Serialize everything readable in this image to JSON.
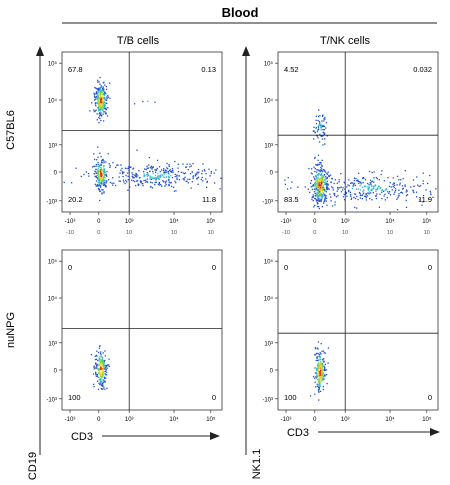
{
  "title": "Blood",
  "columns": [
    {
      "title": "T/B cells",
      "x_label": "CD3",
      "y_label": "CD19"
    },
    {
      "title": "T/NK cells",
      "x_label": "CD3",
      "y_label": "NK1.1"
    }
  ],
  "rows": [
    {
      "label": "C57BL6"
    },
    {
      "label": "nuNPG"
    }
  ],
  "axis_ticks": {
    "x_upper": [
      "-10³",
      "0",
      "10³",
      "10⁴",
      "10⁵"
    ],
    "x_lower": [
      "-10",
      "0",
      "10",
      "10",
      "10"
    ],
    "y": [
      "10⁵",
      "10⁴",
      "10³",
      "0",
      "-10³"
    ]
  },
  "chart_data": [
    {
      "type": "scatter",
      "title": "T/B cells",
      "row": "C57BL6",
      "xlabel": "CD3",
      "ylabel": "CD19",
      "quadrants": {
        "top_left": "67.8",
        "top_right": "0.13",
        "bottom_left": "20.2",
        "bottom_right": "11.8"
      }
    },
    {
      "type": "scatter",
      "title": "T/NK cells",
      "row": "C57BL6",
      "xlabel": "CD3",
      "ylabel": "NK1.1",
      "quadrants": {
        "top_left": "4.52",
        "top_right": "0.032",
        "bottom_left": "83.5",
        "bottom_right": "11.9"
      }
    },
    {
      "type": "scatter",
      "title": "T/B cells",
      "row": "nuNPG",
      "xlabel": "CD3",
      "ylabel": "CD19",
      "quadrants": {
        "top_left": "0",
        "top_right": "0",
        "bottom_left": "100",
        "bottom_right": "0"
      }
    },
    {
      "type": "scatter",
      "title": "T/NK cells",
      "row": "nuNPG",
      "xlabel": "CD3",
      "ylabel": "NK1.1",
      "quadrants": {
        "top_left": "0",
        "top_right": "0",
        "bottom_left": "100",
        "bottom_right": "0"
      }
    }
  ],
  "colors": {
    "low": "#1f4fd1",
    "mid": "#2fb8c9",
    "midhigh": "#7fd23c",
    "high": "#f5d21a",
    "peak": "#e0321c"
  }
}
